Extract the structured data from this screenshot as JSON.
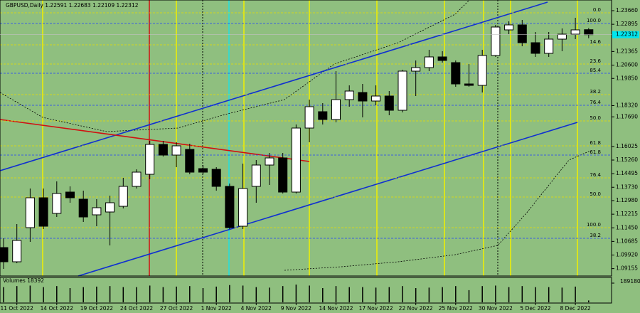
{
  "chart_data": {
    "type": "candlestick",
    "title": "GBPUSD,Daily",
    "categories": [
      null,
      "11 Oct 2022",
      null,
      null,
      "14 Oct 2022",
      null,
      null,
      "19 Oct 2022",
      null,
      null,
      "24 Oct 2022",
      null,
      null,
      "27 Oct 2022",
      null,
      null,
      "1 Nov 2022",
      null,
      null,
      "4 Nov 2022",
      null,
      null,
      "9 Nov 2022",
      null,
      null,
      "14 Nov 2022",
      null,
      null,
      "17 Nov 2022",
      null,
      null,
      "22 Nov 2022",
      null,
      null,
      "25 Nov 2022",
      null,
      null,
      "30 Nov 2022",
      null,
      null,
      "5 Dec 2022",
      null,
      null,
      "8 Dec 2022",
      null
    ],
    "open": [
      1.1034,
      1.0954,
      1.1146,
      1.1314,
      1.1226,
      1.1346,
      1.1306,
      1.1218,
      1.1234,
      1.1266,
      1.1378,
      1.1446,
      1.1614,
      1.1554,
      1.1586,
      1.1478,
      1.1474,
      1.1378,
      1.1154,
      1.1378,
      1.1498,
      1.1538,
      1.1346,
      1.1706,
      1.1798,
      1.1754,
      1.1866,
      1.1906,
      1.1858,
      1.1886,
      1.1806,
      1.2026,
      1.2046,
      1.2106,
      1.2074,
      1.1954,
      1.1946,
      1.2114,
      1.2258,
      1.2286,
      1.2186,
      1.2126,
      1.2206,
      1.2234,
      1.22591
    ],
    "high": [
      1.1086,
      1.1166,
      1.1366,
      1.1366,
      1.1406,
      1.1378,
      1.1354,
      1.1306,
      1.1326,
      1.1426,
      1.1474,
      1.1634,
      1.1634,
      1.1626,
      1.1618,
      1.1498,
      1.1486,
      1.1394,
      1.1506,
      1.1526,
      1.1566,
      1.1566,
      1.1726,
      1.1866,
      1.1846,
      1.2026,
      1.1946,
      1.1954,
      1.1946,
      1.1914,
      1.2034,
      1.2086,
      1.2146,
      1.2138,
      1.2086,
      1.2066,
      1.2146,
      1.2286,
      1.2306,
      1.2314,
      1.2246,
      1.2246,
      1.2266,
      1.2326,
      1.22683
    ],
    "low": [
      1.0914,
      1.0946,
      1.1066,
      1.1138,
      1.1206,
      1.1286,
      1.1178,
      1.1154,
      1.1046,
      1.1254,
      1.1366,
      1.1418,
      1.1546,
      1.1486,
      1.1446,
      1.1446,
      1.1354,
      1.1138,
      1.1138,
      1.1286,
      1.1386,
      1.1338,
      1.1338,
      1.1626,
      1.1726,
      1.1738,
      1.1826,
      1.1766,
      1.1834,
      1.1778,
      1.1794,
      1.1886,
      1.2026,
      1.2074,
      1.1938,
      1.1938,
      1.1906,
      1.2106,
      1.2234,
      1.2166,
      1.2106,
      1.2106,
      1.2138,
      1.2206,
      1.22109
    ],
    "close": [
      1.0954,
      1.1074,
      1.1314,
      1.1154,
      1.1338,
      1.1314,
      1.1206,
      1.1258,
      1.1286,
      1.1378,
      1.1458,
      1.1614,
      1.1554,
      1.1606,
      1.1458,
      1.1458,
      1.1378,
      1.1146,
      1.1366,
      1.1498,
      1.1538,
      1.1346,
      1.1706,
      1.1826,
      1.1754,
      1.1866,
      1.1914,
      1.1858,
      1.1886,
      1.1806,
      1.2026,
      1.2046,
      1.2106,
      1.2086,
      1.1954,
      1.1946,
      1.2114,
      1.2274,
      1.2286,
      1.2186,
      1.2126,
      1.2206,
      1.2234,
      1.2258,
      1.22312
    ],
    "volume_label": "Volumes",
    "volumes": [
      150000,
      160000,
      165000,
      150000,
      160000,
      140000,
      150000,
      155000,
      160000,
      150000,
      150000,
      165000,
      150000,
      155000,
      160000,
      140000,
      155000,
      170000,
      165000,
      150000,
      145000,
      160000,
      175000,
      165000,
      140000,
      160000,
      150000,
      150000,
      145000,
      150000,
      160000,
      140000,
      145000,
      150000,
      160000,
      120000,
      160000,
      165000,
      150000,
      160000,
      150000,
      150000,
      145000,
      155000,
      18392
    ],
    "y2lim": [
      0,
      189180
    ],
    "y2ticks": [
      189180
    ],
    "ylim": [
      1.0874,
      1.2426
    ],
    "yticks": [
      {
        "value": 1.2366,
        "label": "1.23660"
      },
      1.22895,
      1.21365,
      {
        "value": 1.206,
        "label": "1.20600"
      },
      {
        "value": 1.1985,
        "label": "1.19850"
      },
      {
        "value": 1.1832,
        "label": "1.18320"
      },
      {
        "value": 1.1769,
        "label": "1.17690"
      },
      1.16025,
      {
        "value": 1.1526,
        "label": "1.15260"
      },
      1.14495,
      {
        "value": 1.1373,
        "label": "1.13730"
      },
      {
        "value": 1.1298,
        "label": "1.12980"
      },
      1.12215,
      {
        "value": 1.1145,
        "label": "1.11450"
      },
      1.10685,
      {
        "value": 1.0992,
        "label": "1.09920"
      },
      1.09155
    ],
    "levels": [
      {
        "label": "0.0",
        "value": 1.2354,
        "color": "#e8e000"
      },
      {
        "label": "100.0",
        "value": 1.2294,
        "color": "#2040ff"
      },
      {
        "label": "14.6",
        "value": 1.2174,
        "color": "#e8e000"
      },
      {
        "label": "23.6",
        "value": 1.2066,
        "color": "#e8e000"
      },
      {
        "label": "85.4",
        "value": 1.2014,
        "color": "#2040ff"
      },
      {
        "label": "38.2",
        "value": 1.1894,
        "color": "#e8e000"
      },
      {
        "label": "76.4",
        "value": 1.1834,
        "color": "#2040ff"
      },
      {
        "label": "50.0",
        "value": 1.1746,
        "color": "#e8e000"
      },
      {
        "label": "61.8",
        "value": 1.1606,
        "color": "#e8e000"
      },
      {
        "label": "61.8",
        "value": 1.1554,
        "color": "#2040ff"
      },
      {
        "label": "76.4",
        "value": 1.1426,
        "color": "#e8e000"
      },
      {
        "label": "50.0",
        "value": 1.1318,
        "color": "#e8e000"
      },
      {
        "label": "100.0",
        "value": 1.1146,
        "color": "#e8e000"
      },
      {
        "label": "38.2",
        "value": 1.1086,
        "color": "#2040ff"
      }
    ],
    "bull_color": "#ffffff",
    "bear_color": "#000000",
    "current_color": "#00e5ee"
  }
}
